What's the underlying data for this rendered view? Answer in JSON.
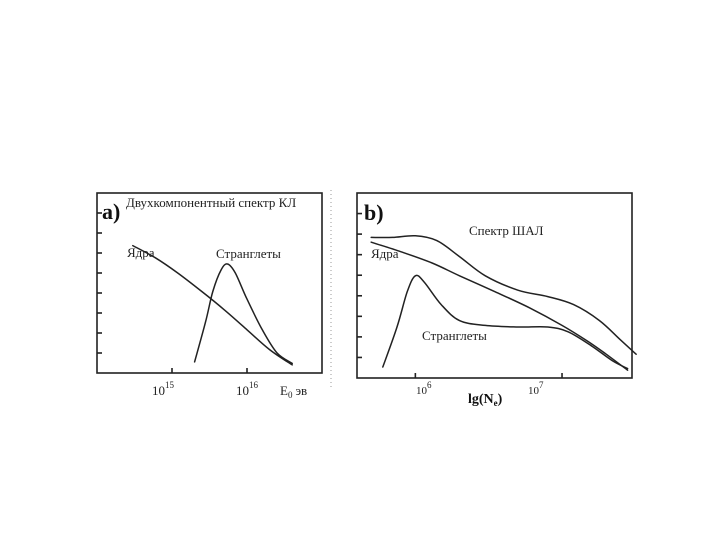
{
  "chart_data": [
    {
      "type": "line",
      "panel_label": "a)",
      "title": "Двухкомпонентный спектр КЛ",
      "xlabel_unit": "эв",
      "xlabel_symbol": "E",
      "xlabel_sub": "0",
      "x_scale": "log",
      "xlim": [
        100000000000000.0,
        1e+17
      ],
      "x_ticks": [
        {
          "value": 1000000000000000.0,
          "base": "10",
          "exp": "15"
        },
        {
          "value": 1e+16,
          "base": "10",
          "exp": "16"
        }
      ],
      "series": [
        {
          "name": "Ядра",
          "points": [
            [
              300000000000000.0,
              0.8
            ],
            [
              600000000000000.0,
              0.72
            ],
            [
              1200000000000000.0,
              0.62
            ],
            [
              2500000000000000.0,
              0.5
            ],
            [
              5000000000000000.0,
              0.38
            ],
            [
              1e+16,
              0.25
            ],
            [
              2e+16,
              0.12
            ],
            [
              4e+16,
              0.02
            ]
          ]
        },
        {
          "name": "Странглеты",
          "points": [
            [
              2000000000000000.0,
              0.04
            ],
            [
              2800000000000000.0,
              0.3
            ],
            [
              3500000000000000.0,
              0.5
            ],
            [
              4500000000000000.0,
              0.64
            ],
            [
              5500000000000000.0,
              0.68
            ],
            [
              7000000000000000.0,
              0.62
            ],
            [
              1e+16,
              0.45
            ],
            [
              1.6e+16,
              0.25
            ],
            [
              2.5e+16,
              0.1
            ],
            [
              4e+16,
              0.03
            ]
          ]
        }
      ],
      "annotations": [
        {
          "text": "Ядра",
          "ref": "series.0"
        },
        {
          "text": "Странглеты",
          "ref": "series.1"
        }
      ]
    },
    {
      "type": "line",
      "panel_label": "b)",
      "xlabel": "lg(N",
      "xlabel_sub": "e",
      "xlabel_close": ")",
      "x_scale": "log",
      "xlim": [
        400000.0,
        30000000.0
      ],
      "x_ticks": [
        {
          "value": 1000000.0,
          "base": "10",
          "exp": "6"
        },
        {
          "value": 10000000.0,
          "base": "10",
          "exp": "7"
        }
      ],
      "series": [
        {
          "name": "Спектр ШАЛ",
          "points": [
            [
              500000.0,
              0.86
            ],
            [
              700000.0,
              0.86
            ],
            [
              1000000.0,
              0.87
            ],
            [
              1400000.0,
              0.84
            ],
            [
              2000000.0,
              0.74
            ],
            [
              3000000.0,
              0.62
            ],
            [
              5000000.0,
              0.53
            ],
            [
              8000000.0,
              0.49
            ],
            [
              12000000.0,
              0.44
            ],
            [
              18000000.0,
              0.34
            ],
            [
              25000000.0,
              0.22
            ],
            [
              32000000.0,
              0.13
            ]
          ]
        },
        {
          "name": "Ядра",
          "points": [
            [
              500000.0,
              0.83
            ],
            [
              800000.0,
              0.77
            ],
            [
              1300000.0,
              0.7
            ],
            [
              2000000.0,
              0.62
            ],
            [
              3500000.0,
              0.52
            ],
            [
              6000000.0,
              0.42
            ],
            [
              10000000.0,
              0.31
            ],
            [
              15000000.0,
              0.21
            ],
            [
              20000000.0,
              0.13
            ],
            [
              28000000.0,
              0.03
            ]
          ]
        },
        {
          "name": "Странглеты",
          "points": [
            [
              600000.0,
              0.05
            ],
            [
              750000.0,
              0.3
            ],
            [
              880000.0,
              0.52
            ],
            [
              1000000.0,
              0.62
            ],
            [
              1150000.0,
              0.58
            ],
            [
              1500000.0,
              0.44
            ],
            [
              2000000.0,
              0.34
            ],
            [
              3000000.0,
              0.31
            ],
            [
              5000000.0,
              0.3
            ],
            [
              8000000.0,
              0.3
            ],
            [
              11000000.0,
              0.27
            ],
            [
              16000000.0,
              0.18
            ],
            [
              22000000.0,
              0.09
            ],
            [
              28000000.0,
              0.04
            ]
          ]
        }
      ],
      "annotations": [
        {
          "text": "Спектр ШАЛ",
          "ref": "series.0"
        },
        {
          "text": "Ядра",
          "ref": "series.1"
        },
        {
          "text": "Странглеты",
          "ref": "series.2"
        }
      ]
    }
  ]
}
